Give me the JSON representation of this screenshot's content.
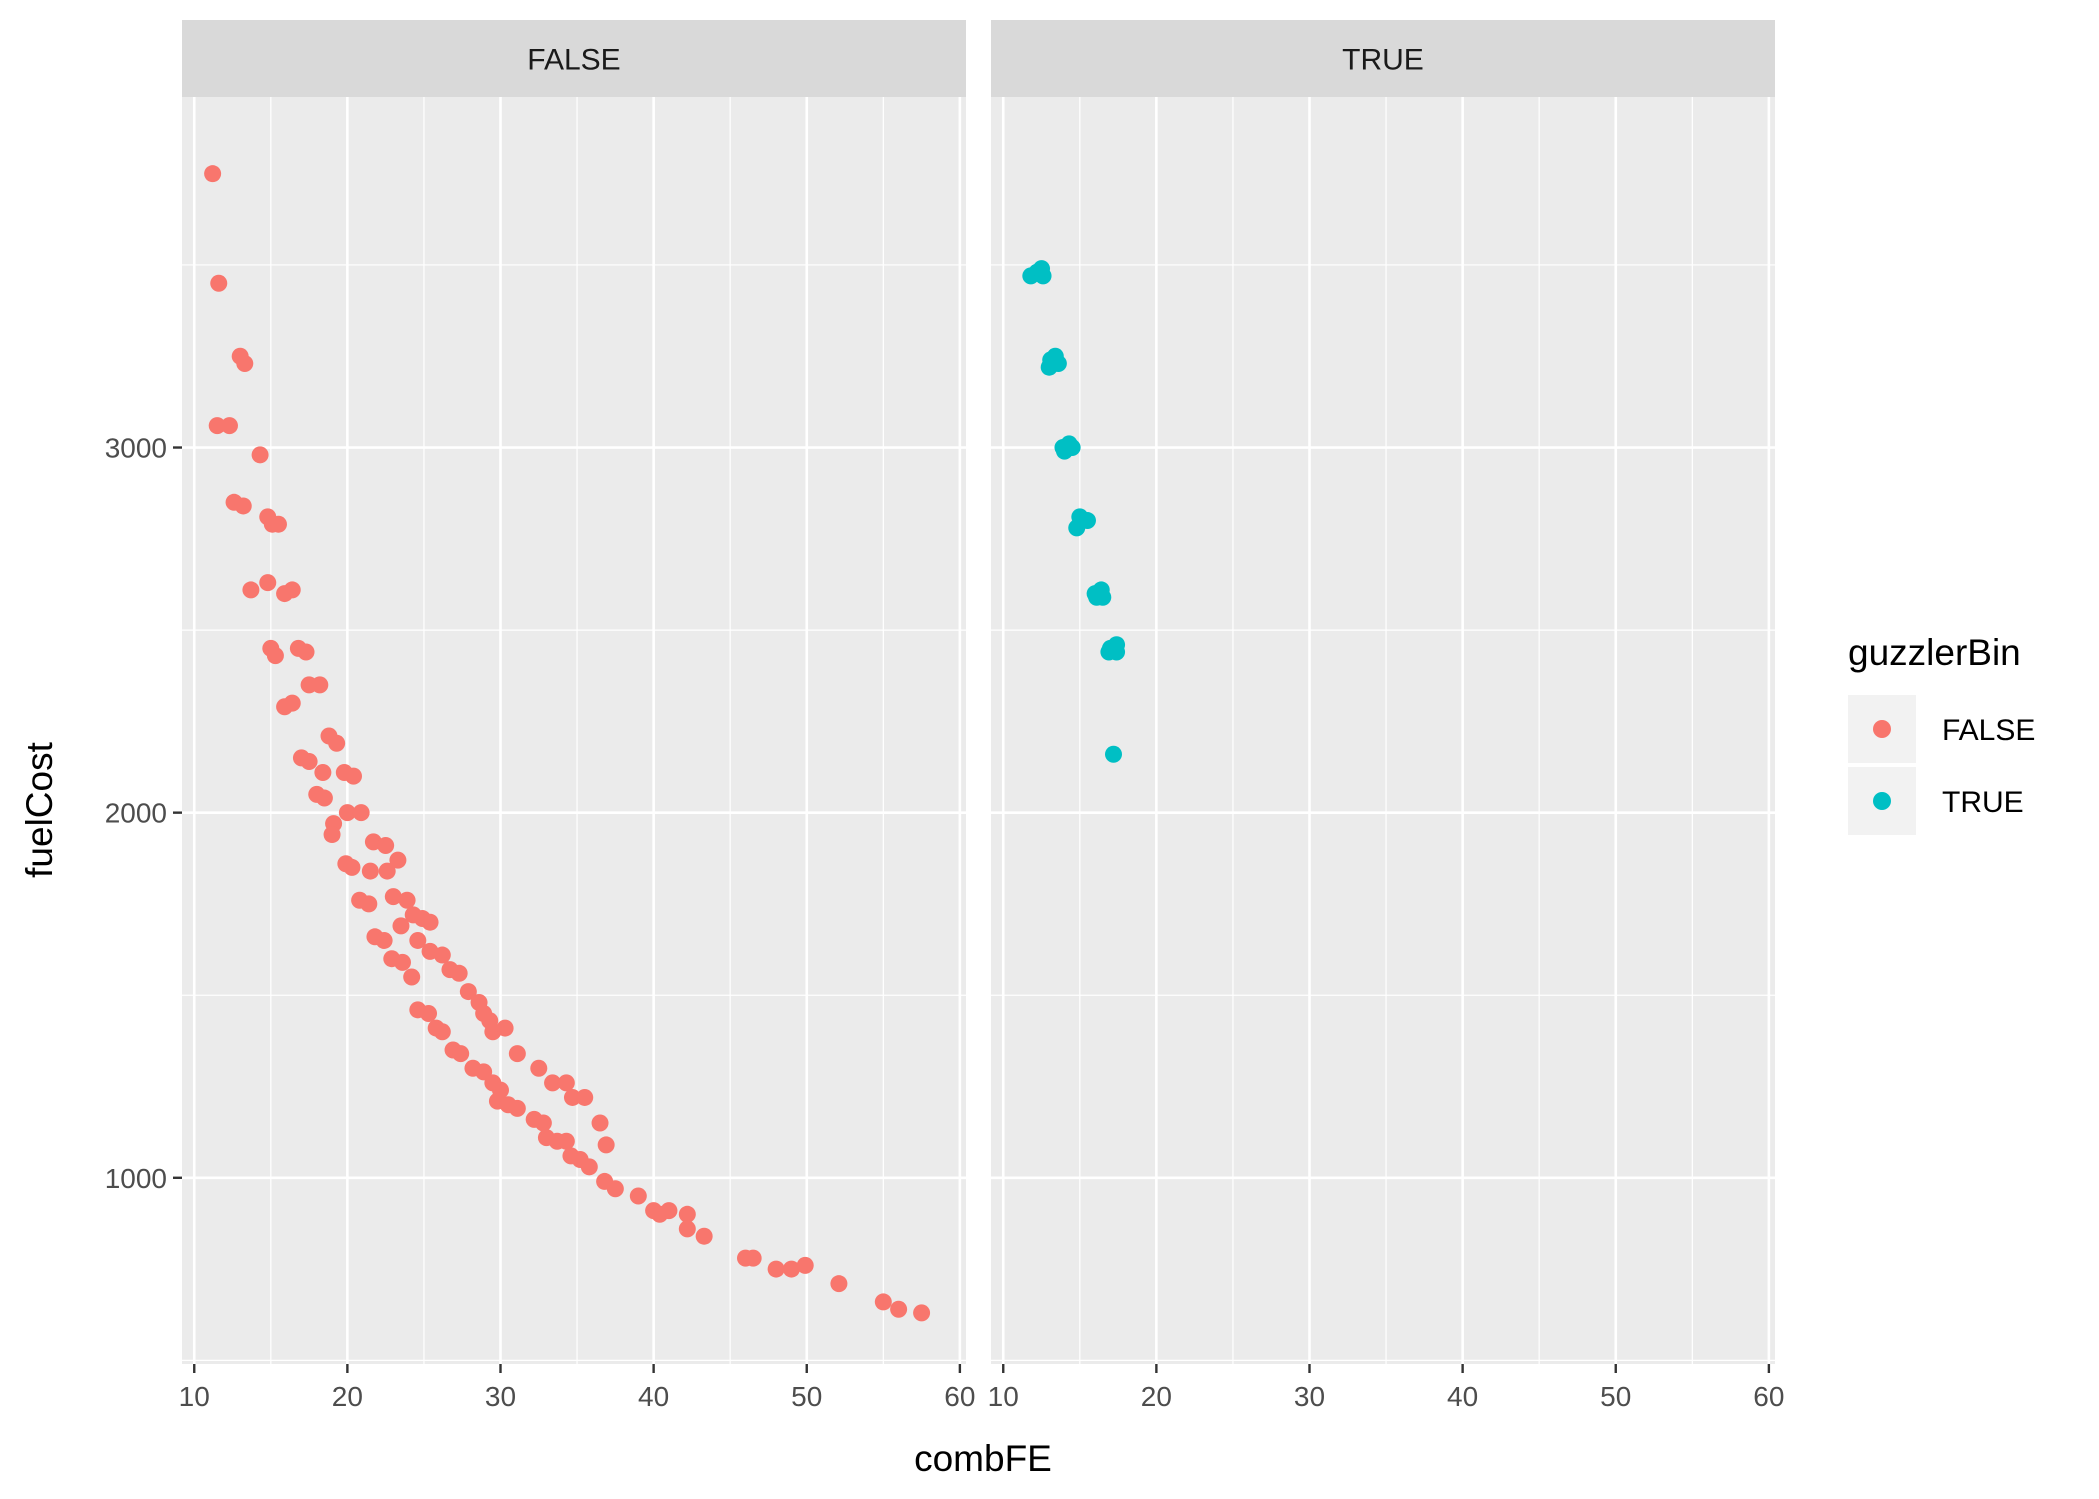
{
  "chart_data": {
    "type": "scatter",
    "facet_variable": "guzzlerBin",
    "xlabel": "combFE",
    "ylabel": "fuelCost",
    "xlim": [
      9.2,
      60.4
    ],
    "ylim": [
      490,
      3960
    ],
    "x_ticks": [
      "10",
      "20",
      "30",
      "40",
      "50",
      "60"
    ],
    "y_ticks": [
      "1000",
      "2000",
      "3000"
    ],
    "y_tick_values": [
      1000,
      2000,
      3000
    ],
    "legend": {
      "title": "guzzlerBin",
      "position": "right",
      "entries": [
        {
          "label": "FALSE",
          "color": "#F8766D"
        },
        {
          "label": "TRUE",
          "color": "#00BFC4"
        }
      ]
    },
    "panel_background": "#EBEBEB",
    "strip_background": "#D9D9D9",
    "grid": true,
    "panels": [
      {
        "strip": "FALSE",
        "color": "#F8766D",
        "points": [
          [
            11.2,
            3750
          ],
          [
            11.6,
            3450
          ],
          [
            11.5,
            3060
          ],
          [
            12.3,
            3060
          ],
          [
            13.0,
            3250
          ],
          [
            13.3,
            3230
          ],
          [
            14.3,
            2980
          ],
          [
            12.6,
            2850
          ],
          [
            13.2,
            2840
          ],
          [
            14.8,
            2810
          ],
          [
            15.1,
            2790
          ],
          [
            15.5,
            2790
          ],
          [
            13.7,
            2610
          ],
          [
            14.8,
            2630
          ],
          [
            15.9,
            2600
          ],
          [
            16.4,
            2610
          ],
          [
            15.0,
            2450
          ],
          [
            15.3,
            2430
          ],
          [
            16.8,
            2450
          ],
          [
            17.3,
            2440
          ],
          [
            17.5,
            2350
          ],
          [
            18.2,
            2350
          ],
          [
            15.9,
            2290
          ],
          [
            16.4,
            2300
          ],
          [
            18.8,
            2210
          ],
          [
            19.3,
            2190
          ],
          [
            17.0,
            2150
          ],
          [
            17.5,
            2140
          ],
          [
            18.4,
            2110
          ],
          [
            19.8,
            2110
          ],
          [
            20.4,
            2100
          ],
          [
            18.0,
            2050
          ],
          [
            18.5,
            2040
          ],
          [
            19.1,
            1970
          ],
          [
            20.0,
            2000
          ],
          [
            20.9,
            2000
          ],
          [
            19.0,
            1940
          ],
          [
            19.9,
            1860
          ],
          [
            20.3,
            1850
          ],
          [
            21.7,
            1920
          ],
          [
            22.5,
            1910
          ],
          [
            23.3,
            1870
          ],
          [
            21.5,
            1840
          ],
          [
            22.6,
            1840
          ],
          [
            20.8,
            1760
          ],
          [
            21.4,
            1750
          ],
          [
            23.0,
            1770
          ],
          [
            23.9,
            1760
          ],
          [
            21.8,
            1660
          ],
          [
            22.4,
            1650
          ],
          [
            24.3,
            1720
          ],
          [
            24.9,
            1710
          ],
          [
            25.4,
            1700
          ],
          [
            23.5,
            1690
          ],
          [
            22.9,
            1600
          ],
          [
            23.6,
            1590
          ],
          [
            24.6,
            1650
          ],
          [
            25.4,
            1620
          ],
          [
            26.2,
            1610
          ],
          [
            24.2,
            1550
          ],
          [
            26.7,
            1570
          ],
          [
            27.3,
            1560
          ],
          [
            27.9,
            1510
          ],
          [
            28.6,
            1480
          ],
          [
            24.6,
            1460
          ],
          [
            25.3,
            1450
          ],
          [
            28.9,
            1450
          ],
          [
            29.3,
            1430
          ],
          [
            25.8,
            1410
          ],
          [
            26.2,
            1400
          ],
          [
            29.5,
            1400
          ],
          [
            30.3,
            1410
          ],
          [
            26.9,
            1350
          ],
          [
            27.4,
            1340
          ],
          [
            31.1,
            1340
          ],
          [
            28.2,
            1300
          ],
          [
            28.9,
            1290
          ],
          [
            32.5,
            1300
          ],
          [
            29.5,
            1260
          ],
          [
            30.0,
            1240
          ],
          [
            33.4,
            1260
          ],
          [
            34.3,
            1260
          ],
          [
            29.8,
            1210
          ],
          [
            30.5,
            1200
          ],
          [
            31.1,
            1190
          ],
          [
            32.2,
            1160
          ],
          [
            32.8,
            1150
          ],
          [
            34.7,
            1220
          ],
          [
            35.5,
            1220
          ],
          [
            36.5,
            1150
          ],
          [
            33.0,
            1110
          ],
          [
            33.7,
            1100
          ],
          [
            34.3,
            1100
          ],
          [
            36.9,
            1090
          ],
          [
            34.6,
            1060
          ],
          [
            35.2,
            1050
          ],
          [
            35.8,
            1030
          ],
          [
            36.8,
            990
          ],
          [
            37.5,
            970
          ],
          [
            39.0,
            950
          ],
          [
            40.0,
            910
          ],
          [
            40.4,
            900
          ],
          [
            41.0,
            910
          ],
          [
            42.2,
            900
          ],
          [
            42.2,
            860
          ],
          [
            43.3,
            840
          ],
          [
            46.0,
            780
          ],
          [
            46.5,
            780
          ],
          [
            48.0,
            750
          ],
          [
            49.0,
            750
          ],
          [
            49.9,
            760
          ],
          [
            52.1,
            710
          ],
          [
            55.0,
            660
          ],
          [
            56.0,
            640
          ],
          [
            57.5,
            630
          ]
        ]
      },
      {
        "strip": "TRUE",
        "color": "#00BFC4",
        "points": [
          [
            11.8,
            3470
          ],
          [
            12.2,
            3480
          ],
          [
            12.6,
            3470
          ],
          [
            12.5,
            3490
          ],
          [
            13.1,
            3240
          ],
          [
            13.4,
            3250
          ],
          [
            13.6,
            3230
          ],
          [
            13.0,
            3220
          ],
          [
            13.9,
            3000
          ],
          [
            14.3,
            3010
          ],
          [
            14.0,
            2990
          ],
          [
            14.5,
            3000
          ],
          [
            15.0,
            2810
          ],
          [
            15.5,
            2800
          ],
          [
            14.8,
            2780
          ],
          [
            16.0,
            2600
          ],
          [
            16.4,
            2610
          ],
          [
            16.1,
            2590
          ],
          [
            16.5,
            2590
          ],
          [
            17.0,
            2450
          ],
          [
            17.4,
            2460
          ],
          [
            16.9,
            2440
          ],
          [
            17.4,
            2440
          ],
          [
            17.2,
            2160
          ]
        ]
      }
    ]
  }
}
